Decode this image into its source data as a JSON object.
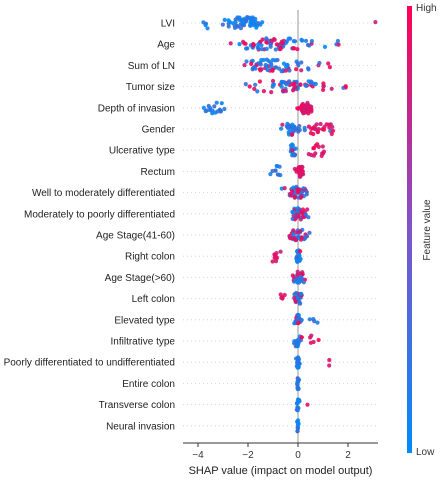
{
  "chart_data": {
    "type": "scatter",
    "subtype": "shap-beeswarm",
    "xlabel": "SHAP value (impact on model output)",
    "xlim": [
      -4.6,
      3.2
    ],
    "xticks": [
      -4,
      -2,
      0,
      2
    ],
    "zero_line": true,
    "colorbar": {
      "label": "Feature value",
      "high_label": "High",
      "low_label": "Low",
      "high_color": "#ff0052",
      "low_color": "#008bfb"
    },
    "features": [
      {
        "name": "LVI",
        "clusters": [
          {
            "center": -2.2,
            "spread": 1.1,
            "count": 55,
            "high_frac": 0.0
          },
          {
            "center": -3.7,
            "spread": 0.2,
            "count": 4,
            "high_frac": 0.0
          },
          {
            "center": 3.1,
            "spread": 0.05,
            "count": 1,
            "high_frac": 1.0
          }
        ]
      },
      {
        "name": "Age",
        "clusters": [
          {
            "center": -1.0,
            "spread": 2.4,
            "count": 70,
            "high_frac": 0.45
          },
          {
            "center": 1.6,
            "spread": 0.2,
            "count": 3,
            "high_frac": 0.3
          }
        ]
      },
      {
        "name": "Sum of LN",
        "clusters": [
          {
            "center": -0.8,
            "spread": 2.0,
            "count": 60,
            "high_frac": 0.4
          },
          {
            "center": 1.2,
            "spread": 0.15,
            "count": 2,
            "high_frac": 0.8
          }
        ]
      },
      {
        "name": "Tumor size",
        "clusters": [
          {
            "center": -0.5,
            "spread": 2.2,
            "count": 60,
            "high_frac": 0.45
          },
          {
            "center": 1.9,
            "spread": 0.2,
            "count": 3,
            "high_frac": 0.9
          }
        ]
      },
      {
        "name": "Depth of invasion",
        "clusters": [
          {
            "center": 0.3,
            "spread": 0.4,
            "count": 40,
            "high_frac": 1.0
          },
          {
            "center": -3.3,
            "spread": 0.7,
            "count": 18,
            "high_frac": 0.0
          }
        ]
      },
      {
        "name": "Gender",
        "clusters": [
          {
            "center": -0.2,
            "spread": 0.6,
            "count": 30,
            "high_frac": 0.05
          },
          {
            "center": 0.9,
            "spread": 0.9,
            "count": 24,
            "high_frac": 0.95
          }
        ]
      },
      {
        "name": "Ulcerative type",
        "clusters": [
          {
            "center": -0.2,
            "spread": 0.2,
            "count": 18,
            "high_frac": 0.05
          },
          {
            "center": 0.8,
            "spread": 0.6,
            "count": 14,
            "high_frac": 0.95
          }
        ]
      },
      {
        "name": "Rectum",
        "clusters": [
          {
            "center": 0.05,
            "spread": 0.25,
            "count": 30,
            "high_frac": 0.9
          },
          {
            "center": -0.8,
            "spread": 0.5,
            "count": 10,
            "high_frac": 0.0
          }
        ]
      },
      {
        "name": "Well to moderately differentiated",
        "clusters": [
          {
            "center": -0.1,
            "spread": 0.7,
            "count": 40,
            "high_frac": 0.5
          }
        ]
      },
      {
        "name": "Moderately to poorly differentiated",
        "clusters": [
          {
            "center": 0.0,
            "spread": 0.6,
            "count": 38,
            "high_frac": 0.5
          }
        ]
      },
      {
        "name": "Age Stage(41-60)",
        "clusters": [
          {
            "center": 0.0,
            "spread": 0.6,
            "count": 34,
            "high_frac": 0.5
          }
        ]
      },
      {
        "name": "Right colon",
        "clusters": [
          {
            "center": 0.0,
            "spread": 0.15,
            "count": 22,
            "high_frac": 0.1
          },
          {
            "center": -0.9,
            "spread": 0.3,
            "count": 10,
            "high_frac": 1.0
          }
        ]
      },
      {
        "name": "Age Stage(>60)",
        "clusters": [
          {
            "center": 0.0,
            "spread": 0.45,
            "count": 30,
            "high_frac": 0.5
          }
        ]
      },
      {
        "name": "Left colon",
        "clusters": [
          {
            "center": 0.0,
            "spread": 0.3,
            "count": 24,
            "high_frac": 0.1
          },
          {
            "center": -0.6,
            "spread": 0.2,
            "count": 6,
            "high_frac": 1.0
          }
        ]
      },
      {
        "name": "Elevated type",
        "clusters": [
          {
            "center": 0.0,
            "spread": 0.2,
            "count": 26,
            "high_frac": 0.2
          },
          {
            "center": 0.6,
            "spread": 0.3,
            "count": 4,
            "high_frac": 0.0
          }
        ]
      },
      {
        "name": "Infiltrative type",
        "clusters": [
          {
            "center": 0.0,
            "spread": 0.2,
            "count": 22,
            "high_frac": 0.1
          },
          {
            "center": 0.6,
            "spread": 0.3,
            "count": 5,
            "high_frac": 1.0
          }
        ]
      },
      {
        "name": "Poorly differentiated to undifferentiated",
        "clusters": [
          {
            "center": 0.0,
            "spread": 0.1,
            "count": 18,
            "high_frac": 0.0
          },
          {
            "center": 1.25,
            "spread": 0.1,
            "count": 2,
            "high_frac": 1.0
          }
        ]
      },
      {
        "name": "Entire colon",
        "clusters": [
          {
            "center": 0.0,
            "spread": 0.06,
            "count": 14,
            "high_frac": 0.0
          }
        ]
      },
      {
        "name": "Transverse colon",
        "clusters": [
          {
            "center": 0.0,
            "spread": 0.08,
            "count": 14,
            "high_frac": 0.0
          },
          {
            "center": 0.4,
            "spread": 0.05,
            "count": 1,
            "high_frac": 1.0
          }
        ]
      },
      {
        "name": "Neural invasion",
        "clusters": [
          {
            "center": 0.0,
            "spread": 0.06,
            "count": 12,
            "high_frac": 0.0
          }
        ]
      }
    ]
  }
}
